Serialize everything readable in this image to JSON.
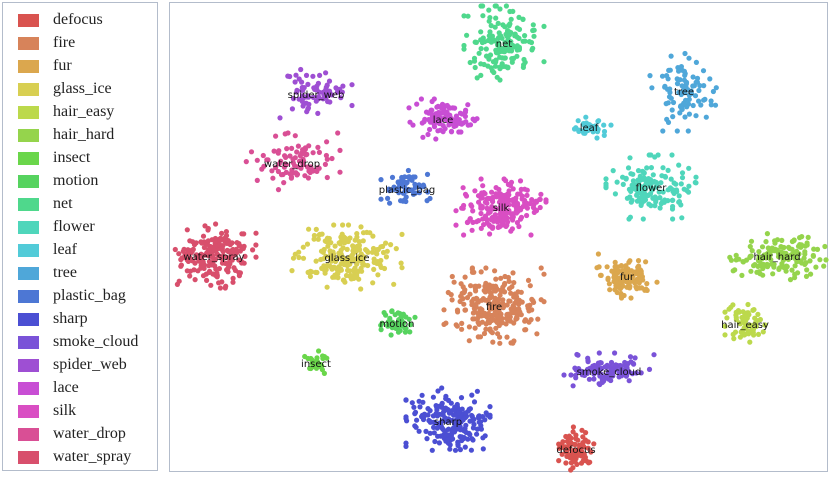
{
  "chart_data": {
    "type": "scatter",
    "title": "",
    "xlabel": "",
    "ylabel": "",
    "grid": false,
    "legend_placement": "left",
    "series": [
      {
        "name": "defocus",
        "color": "#d9534f",
        "center": [
          575,
          448
        ],
        "spread": [
          20,
          22
        ],
        "count": 80
      },
      {
        "name": "fire",
        "color": "#d7835a",
        "center": [
          493,
          305
        ],
        "spread": [
          50,
          38
        ],
        "count": 260
      },
      {
        "name": "fur",
        "color": "#dba74e",
        "center": [
          626,
          275
        ],
        "spread": [
          30,
          22
        ],
        "count": 120
      },
      {
        "name": "glass_ice",
        "color": "#d8cf52",
        "center": [
          346,
          256
        ],
        "spread": [
          55,
          32
        ],
        "count": 220
      },
      {
        "name": "hair_easy",
        "color": "#bcd94c",
        "center": [
          744,
          323
        ],
        "spread": [
          20,
          24
        ],
        "count": 70
      },
      {
        "name": "hair_hard",
        "color": "#95d44c",
        "center": [
          776,
          255
        ],
        "spread": [
          50,
          24
        ],
        "count": 150
      },
      {
        "name": "insect",
        "color": "#6ad64a",
        "center": [
          315,
          362
        ],
        "spread": [
          12,
          12
        ],
        "count": 30
      },
      {
        "name": "motion",
        "color": "#56d35f",
        "center": [
          396,
          322
        ],
        "spread": [
          20,
          13
        ],
        "count": 45
      },
      {
        "name": "net",
        "color": "#4fd88c",
        "center": [
          503,
          42
        ],
        "spread": [
          40,
          37
        ],
        "count": 160
      },
      {
        "name": "flower",
        "color": "#4fd6bb",
        "center": [
          650,
          186
        ],
        "spread": [
          45,
          32
        ],
        "count": 150
      },
      {
        "name": "leaf",
        "color": "#52cbd8",
        "center": [
          588,
          126
        ],
        "spread": [
          22,
          11
        ],
        "count": 40
      },
      {
        "name": "tree",
        "color": "#4fa7d9",
        "center": [
          683,
          90
        ],
        "spread": [
          34,
          40
        ],
        "count": 90
      },
      {
        "name": "plastic_bag",
        "color": "#4d77d4",
        "center": [
          406,
          188
        ],
        "spread": [
          26,
          19
        ],
        "count": 60
      },
      {
        "name": "sharp",
        "color": "#4b4fd3",
        "center": [
          447,
          420
        ],
        "spread": [
          42,
          33
        ],
        "count": 210
      },
      {
        "name": "smoke_cloud",
        "color": "#7a53d8",
        "center": [
          608,
          370
        ],
        "spread": [
          45,
          18
        ],
        "count": 110
      },
      {
        "name": "spider_web",
        "color": "#9e4fd3",
        "center": [
          315,
          93
        ],
        "spread": [
          36,
          27
        ],
        "count": 70
      },
      {
        "name": "lace",
        "color": "#c84ed4",
        "center": [
          442,
          118
        ],
        "spread": [
          34,
          20
        ],
        "count": 110
      },
      {
        "name": "silk",
        "color": "#d94ec3",
        "center": [
          500,
          206
        ],
        "spread": [
          45,
          28
        ],
        "count": 200
      },
      {
        "name": "water_drop",
        "color": "#d94f95",
        "center": [
          291,
          162
        ],
        "spread": [
          48,
          30
        ],
        "count": 90
      },
      {
        "name": "water_spray",
        "color": "#d84f6c",
        "center": [
          213,
          255
        ],
        "spread": [
          42,
          32
        ],
        "count": 200
      }
    ]
  }
}
